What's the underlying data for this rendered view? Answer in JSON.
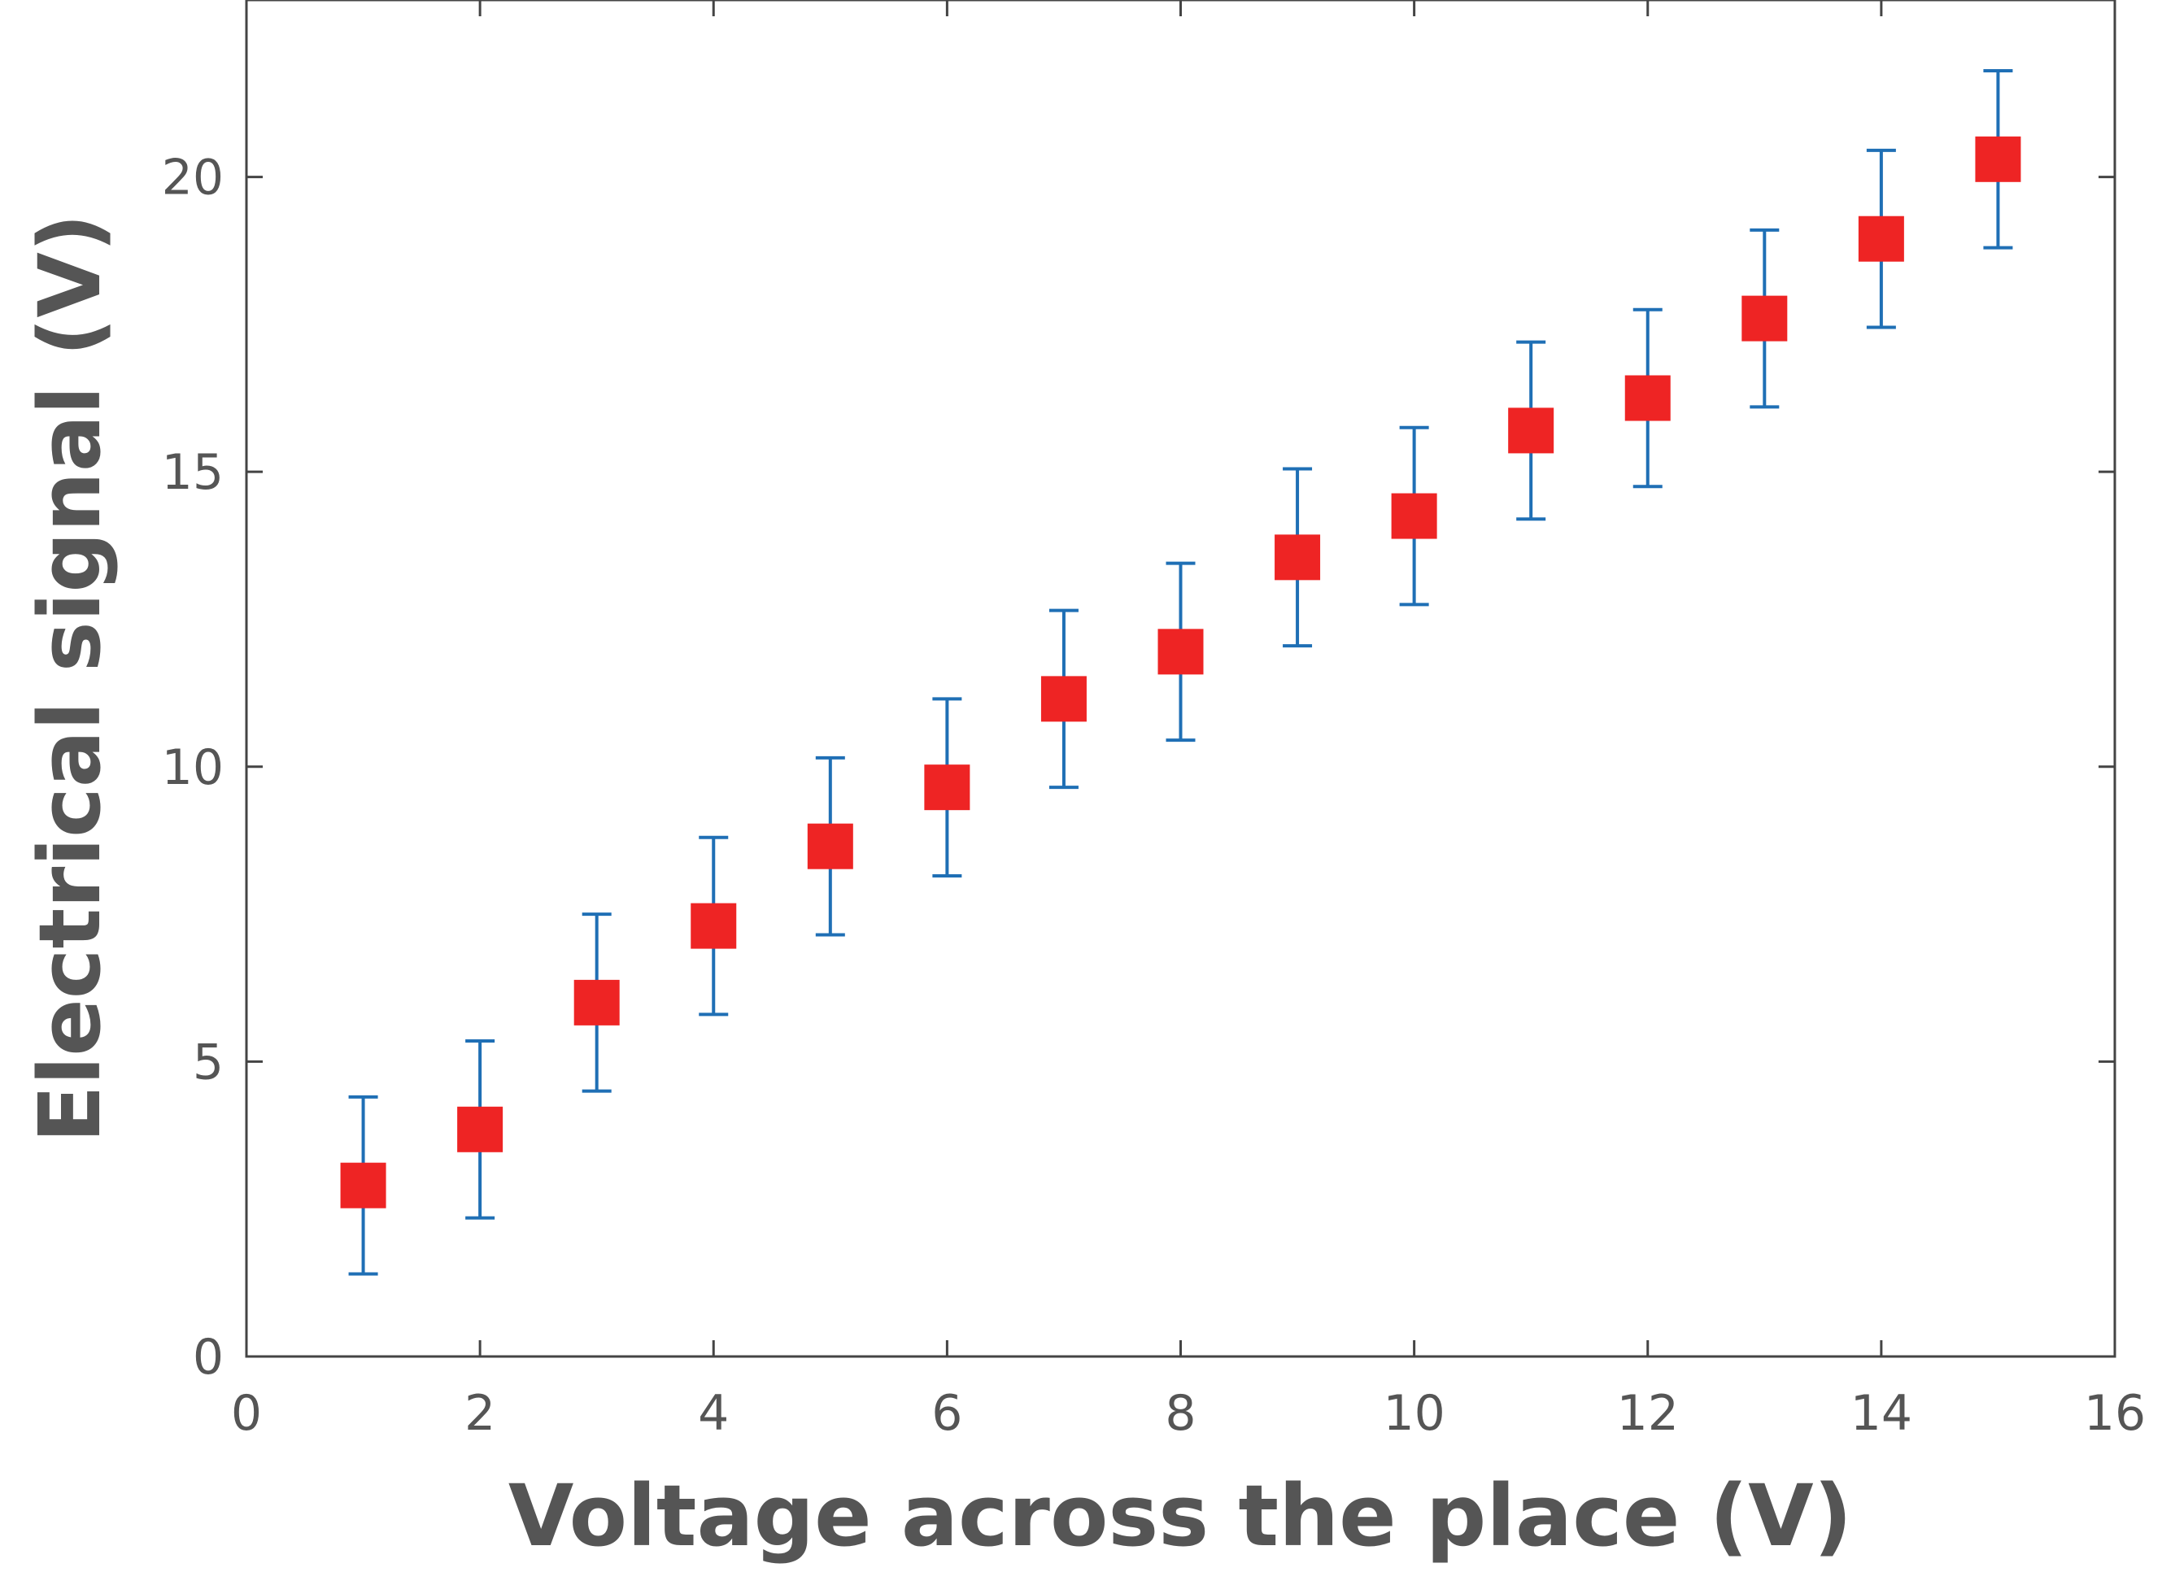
{
  "chart_data": {
    "type": "scatter",
    "title": "",
    "xlabel": "Voltage across the place (V)",
    "ylabel": "Electrical signal (V)",
    "xlim": [
      0,
      16
    ],
    "ylim": [
      0,
      23
    ],
    "grid": false,
    "x_ticks": [
      0,
      2,
      4,
      6,
      8,
      10,
      12,
      14,
      16
    ],
    "y_ticks": [
      0,
      5,
      10,
      15,
      20
    ],
    "series": [
      {
        "marker": "square",
        "marker_color": "#ee2424",
        "error_bar_color": "#1f6fb5",
        "points": [
          {
            "x": 1,
            "y": 2.9,
            "err": 1.5
          },
          {
            "x": 2,
            "y": 3.85,
            "err": 1.5
          },
          {
            "x": 3,
            "y": 6.0,
            "err": 1.5
          },
          {
            "x": 4,
            "y": 7.3,
            "err": 1.5
          },
          {
            "x": 5,
            "y": 8.65,
            "err": 1.5
          },
          {
            "x": 6,
            "y": 9.65,
            "err": 1.5
          },
          {
            "x": 7,
            "y": 11.15,
            "err": 1.5
          },
          {
            "x": 8,
            "y": 11.95,
            "err": 1.5
          },
          {
            "x": 9,
            "y": 13.55,
            "err": 1.5
          },
          {
            "x": 10,
            "y": 14.25,
            "err": 1.5
          },
          {
            "x": 11,
            "y": 15.7,
            "err": 1.5
          },
          {
            "x": 12,
            "y": 16.25,
            "err": 1.5
          },
          {
            "x": 13,
            "y": 17.6,
            "err": 1.5
          },
          {
            "x": 14,
            "y": 18.95,
            "err": 1.5
          },
          {
            "x": 15,
            "y": 20.3,
            "err": 1.5
          }
        ]
      }
    ]
  }
}
